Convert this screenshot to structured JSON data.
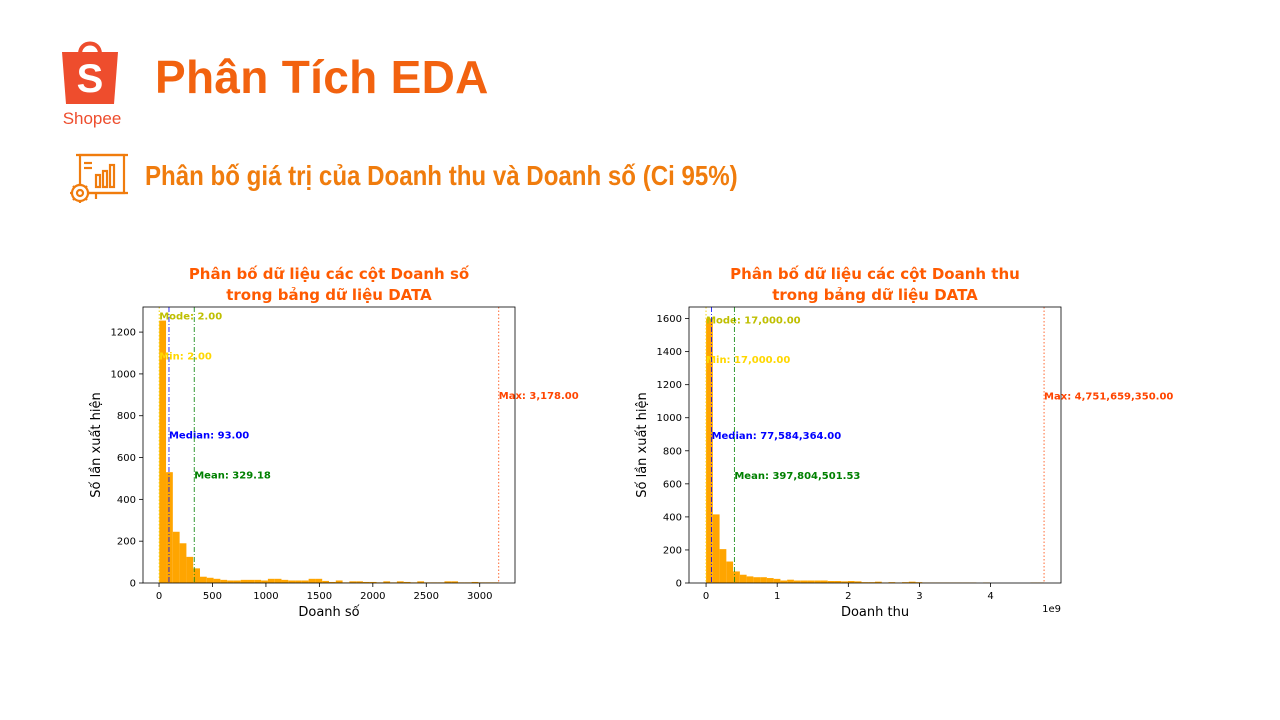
{
  "header": {
    "logo_text": "Shopee",
    "title": "Phân Tích EDA",
    "section_title": "Phân bố giá trị của Doanh thu và Doanh số (Ci 95%)"
  },
  "colors": {
    "brand": "#f2620f",
    "section": "#f07c0d",
    "chart_title": "#ff5a00",
    "bar": "#ffa500",
    "mode": "#bfbf00",
    "min": "#ffd700",
    "median": "#0000ff",
    "mean": "#008000",
    "max": "#ff4500"
  },
  "icons": {
    "logo": "shopee-bag-icon",
    "section": "analytics-board-icon"
  },
  "chart_data": [
    {
      "type": "bar",
      "title": [
        "Phân bố dữ liệu các cột Doanh số",
        "trong bảng dữ liệu DATA"
      ],
      "xlabel": "Doanh số",
      "ylabel": "Số lần xuất hiện",
      "xlim": [
        -150,
        3330
      ],
      "ylim": [
        0,
        1320
      ],
      "x_ticks": [
        0,
        500,
        1000,
        1500,
        2000,
        2500,
        3000
      ],
      "y_ticks": [
        0,
        200,
        400,
        600,
        800,
        1000,
        1200
      ],
      "x_tick_labels": [
        "0",
        "500",
        "1000",
        "1500",
        "2000",
        "2500",
        "3000"
      ],
      "y_tick_labels": [
        "0",
        "200",
        "400",
        "600",
        "800",
        "1000",
        "1200"
      ],
      "offset_label": "",
      "bin_start": 2,
      "bin_width": 63.52,
      "counts": [
        1255,
        530,
        245,
        190,
        125,
        70,
        30,
        25,
        20,
        15,
        12,
        12,
        15,
        15,
        15,
        12,
        20,
        20,
        15,
        12,
        12,
        12,
        20,
        20,
        10,
        5,
        12,
        3,
        8,
        8,
        5,
        5,
        3,
        8,
        3,
        8,
        5,
        3,
        8,
        3,
        3,
        3,
        8,
        8,
        3,
        3,
        5,
        3,
        3,
        3
      ],
      "stats": [
        {
          "name": "Mode",
          "value": 2,
          "label": "Mode: 2.00",
          "color": "#bfbf00",
          "line_style": "dotted",
          "label_y": 1260
        },
        {
          "name": "Min",
          "value": 2,
          "label": "Min: 2.00",
          "color": "#ffd700",
          "line_style": "dotted",
          "label_y": 1070
        },
        {
          "name": "Median",
          "value": 93,
          "label": "Median: 93.00",
          "color": "#0000ff",
          "line_style": "dashdot",
          "label_y": 690
        },
        {
          "name": "Mean",
          "value": 329.18,
          "label": "Mean: 329.18",
          "color": "#008000",
          "line_style": "dashdot",
          "label_y": 500
        },
        {
          "name": "Max",
          "value": 3178,
          "label": "Max: 3,178.00",
          "color": "#ff4500",
          "line_style": "dotted",
          "label_y": 880
        }
      ]
    },
    {
      "type": "bar",
      "title": [
        "Phân bố dữ liệu các cột Doanh thu",
        "trong bảng dữ liệu DATA"
      ],
      "xlabel": "Doanh thu",
      "ylabel": "Số lần xuất hiện",
      "xlim": [
        -0.24,
        4.99
      ],
      "ylim": [
        0,
        1670
      ],
      "x_ticks": [
        0,
        1,
        2,
        3,
        4
      ],
      "y_ticks": [
        0,
        200,
        400,
        600,
        800,
        1000,
        1200,
        1400,
        1600
      ],
      "x_tick_labels": [
        "0",
        "1",
        "2",
        "3",
        "4"
      ],
      "y_tick_labels": [
        "0",
        "200",
        "400",
        "600",
        "800",
        "1000",
        "1200",
        "1400",
        "1600"
      ],
      "offset_label": "1e9",
      "bin_start": 0,
      "bin_width": 0.095,
      "counts": [
        1600,
        415,
        205,
        130,
        70,
        50,
        40,
        35,
        35,
        30,
        25,
        15,
        20,
        15,
        15,
        15,
        15,
        15,
        12,
        12,
        10,
        12,
        10,
        5,
        5,
        8,
        3,
        5,
        3,
        5,
        8,
        5,
        3,
        3,
        3,
        3,
        3,
        3,
        3,
        3,
        0,
        3,
        0,
        0,
        0,
        0,
        0,
        0,
        3,
        3
      ],
      "stats": [
        {
          "name": "Mode",
          "value": 1.7e-05,
          "label": "Mode: 17,000.00",
          "color": "#bfbf00",
          "line_style": "dotted",
          "label_y": 1570
        },
        {
          "name": "Min",
          "value": 1.7e-05,
          "label": "Min: 17,000.00",
          "color": "#ffd700",
          "line_style": "dotted",
          "label_y": 1330
        },
        {
          "name": "Median",
          "value": 0.0776,
          "label": "Median: 77,584,364.00",
          "color": "#0000ff",
          "line_style": "dashdot",
          "label_y": 870
        },
        {
          "name": "Mean",
          "value": 0.3978,
          "label": "Mean: 397,804,501.53",
          "color": "#008000",
          "line_style": "dashdot",
          "label_y": 630
        },
        {
          "name": "Max",
          "value": 4.7517,
          "label": "Max: 4,751,659,350.00",
          "color": "#ff4500",
          "line_style": "dotted",
          "label_y": 1110
        }
      ]
    }
  ]
}
